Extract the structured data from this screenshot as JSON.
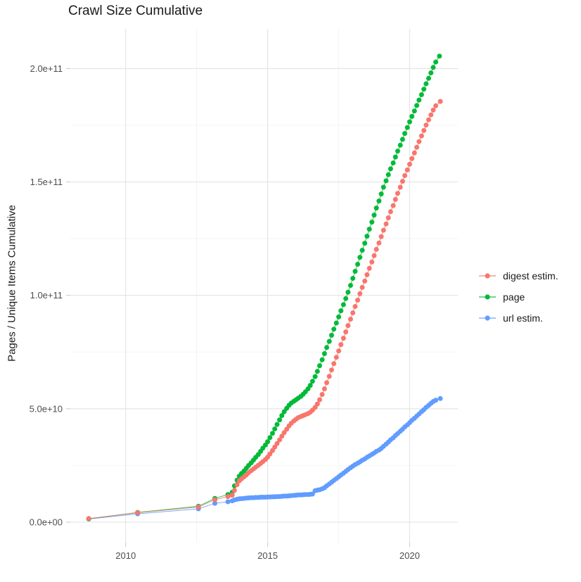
{
  "title": "Crawl Size Cumulative",
  "y_axis": {
    "label": "Pages / Unique Items Cumulative",
    "ticks": [
      {
        "label": "2.0e+11",
        "value": 200
      },
      {
        "label": "1.5e+11",
        "value": 150
      },
      {
        "label": "1.0e+11",
        "value": 100
      },
      {
        "label": "5.0e+10",
        "value": 50
      },
      {
        "label": "0.0e+00",
        "value": 0
      }
    ]
  },
  "x_axis": {
    "ticks": [
      {
        "label": "2010",
        "value": 2010
      },
      {
        "label": "2015",
        "value": 2015
      },
      {
        "label": "2020",
        "value": 2020
      }
    ]
  },
  "legend": {
    "items": [
      {
        "label": "digest estim.",
        "color": "#F8766D"
      },
      {
        "label": "page",
        "color": "#00BA38"
      },
      {
        "label": "url estim.",
        "color": "#619CFF"
      }
    ]
  },
  "colors": {
    "digest": "#F8766D",
    "page": "#00BA38",
    "url": "#619CFF",
    "grid_major": "#e3e3e3",
    "grid_minor": "#f0f0f0",
    "tick_text": "#4d4d4d",
    "title_text": "#1a1a1a",
    "background": "#ffffff"
  },
  "chart_data": {
    "type": "scatter",
    "title": "Crawl Size Cumulative",
    "xlabel": "",
    "ylabel": "Pages / Unique Items Cumulative",
    "values_unit": "billions (1e9) of pages / unique items, cumulative",
    "x_unit": "decimal year",
    "xlim": [
      2008.05,
      2021.7
    ],
    "ylim_billions": [
      -9,
      217.5
    ],
    "x_major_gridlines": [
      2010,
      2015,
      2020
    ],
    "x_minor_gridlines": [
      2012.5,
      2017.5
    ],
    "y_major_gridlines": [
      0,
      50,
      100,
      150,
      200
    ],
    "y_minor_gridlines": [
      25,
      75,
      125,
      175
    ],
    "grid": true,
    "legend_position": "right",
    "series": [
      {
        "name": "url estim.",
        "color": "#619CFF",
        "points": [
          [
            2008.7,
            1.4
          ],
          [
            2010.42,
            3.7
          ],
          [
            2012.56,
            5.9
          ],
          [
            2013.14,
            8.3
          ],
          [
            2013.6,
            9.0
          ],
          [
            2013.75,
            9.4
          ],
          [
            2013.83,
            9.8
          ],
          [
            2013.92,
            10.1
          ],
          [
            2014.0,
            10.3
          ],
          [
            2014.08,
            10.4
          ],
          [
            2014.17,
            10.5
          ],
          [
            2014.25,
            10.6
          ],
          [
            2014.33,
            10.7
          ],
          [
            2014.42,
            10.8
          ],
          [
            2014.5,
            10.8
          ],
          [
            2014.58,
            10.9
          ],
          [
            2014.67,
            10.9
          ],
          [
            2014.75,
            11.0
          ],
          [
            2014.83,
            11.0
          ],
          [
            2014.92,
            11.0
          ],
          [
            2015.0,
            11.1
          ],
          [
            2015.08,
            11.1
          ],
          [
            2015.17,
            11.2
          ],
          [
            2015.25,
            11.2
          ],
          [
            2015.33,
            11.3
          ],
          [
            2015.42,
            11.3
          ],
          [
            2015.5,
            11.4
          ],
          [
            2015.58,
            11.5
          ],
          [
            2015.67,
            11.5
          ],
          [
            2015.75,
            11.6
          ],
          [
            2015.83,
            11.7
          ],
          [
            2015.92,
            11.8
          ],
          [
            2016.0,
            11.9
          ],
          [
            2016.08,
            12.0
          ],
          [
            2016.17,
            12.0
          ],
          [
            2016.25,
            12.1
          ],
          [
            2016.33,
            12.2
          ],
          [
            2016.42,
            12.2
          ],
          [
            2016.5,
            12.3
          ],
          [
            2016.58,
            12.4
          ],
          [
            2016.67,
            13.9
          ],
          [
            2016.75,
            14.1
          ],
          [
            2016.83,
            14.3
          ],
          [
            2016.92,
            14.7
          ],
          [
            2017.0,
            15.2
          ],
          [
            2017.08,
            16.0
          ],
          [
            2017.17,
            16.8
          ],
          [
            2017.25,
            17.6
          ],
          [
            2017.33,
            18.4
          ],
          [
            2017.42,
            19.2
          ],
          [
            2017.5,
            20.0
          ],
          [
            2017.58,
            20.8
          ],
          [
            2017.67,
            21.6
          ],
          [
            2017.75,
            22.4
          ],
          [
            2017.83,
            23.2
          ],
          [
            2017.92,
            24.0
          ],
          [
            2018.0,
            24.7
          ],
          [
            2018.08,
            25.4
          ],
          [
            2018.17,
            26.0
          ],
          [
            2018.25,
            26.6
          ],
          [
            2018.33,
            27.3
          ],
          [
            2018.42,
            27.9
          ],
          [
            2018.5,
            28.6
          ],
          [
            2018.58,
            29.2
          ],
          [
            2018.67,
            29.9
          ],
          [
            2018.75,
            30.5
          ],
          [
            2018.83,
            31.2
          ],
          [
            2018.92,
            31.8
          ],
          [
            2019.0,
            32.5
          ],
          [
            2019.08,
            33.4
          ],
          [
            2019.17,
            34.4
          ],
          [
            2019.25,
            35.3
          ],
          [
            2019.33,
            36.3
          ],
          [
            2019.42,
            37.2
          ],
          [
            2019.5,
            38.2
          ],
          [
            2019.58,
            39.1
          ],
          [
            2019.67,
            40.1
          ],
          [
            2019.75,
            41.0
          ],
          [
            2019.83,
            42.0
          ],
          [
            2019.92,
            42.9
          ],
          [
            2020.0,
            43.9
          ],
          [
            2020.08,
            44.9
          ],
          [
            2020.17,
            45.8
          ],
          [
            2020.25,
            46.8
          ],
          [
            2020.33,
            47.7
          ],
          [
            2020.42,
            48.7
          ],
          [
            2020.5,
            49.6
          ],
          [
            2020.58,
            50.6
          ],
          [
            2020.67,
            51.5
          ],
          [
            2020.75,
            52.4
          ],
          [
            2020.83,
            53.2
          ],
          [
            2020.92,
            53.8
          ],
          [
            2021.08,
            54.5
          ]
        ]
      },
      {
        "name": "page",
        "color": "#00BA38",
        "points": [
          [
            2008.7,
            1.5
          ],
          [
            2010.42,
            4.3
          ],
          [
            2012.56,
            7.0
          ],
          [
            2013.14,
            10.5
          ],
          [
            2013.6,
            12.2
          ],
          [
            2013.75,
            13.2
          ],
          [
            2013.83,
            16.0
          ],
          [
            2013.92,
            18.5
          ],
          [
            2014.0,
            20.3
          ],
          [
            2014.08,
            21.5
          ],
          [
            2014.17,
            22.6
          ],
          [
            2014.25,
            23.8
          ],
          [
            2014.33,
            25.0
          ],
          [
            2014.42,
            26.2
          ],
          [
            2014.5,
            27.4
          ],
          [
            2014.58,
            28.6
          ],
          [
            2014.67,
            29.8
          ],
          [
            2014.75,
            31.2
          ],
          [
            2014.83,
            32.6
          ],
          [
            2014.92,
            34.0
          ],
          [
            2015.0,
            35.5
          ],
          [
            2015.08,
            37.3
          ],
          [
            2015.17,
            39.2
          ],
          [
            2015.25,
            41.1
          ],
          [
            2015.33,
            43.1
          ],
          [
            2015.42,
            45.1
          ],
          [
            2015.5,
            47.0
          ],
          [
            2015.58,
            48.7
          ],
          [
            2015.67,
            50.2
          ],
          [
            2015.75,
            51.5
          ],
          [
            2015.83,
            52.5
          ],
          [
            2015.92,
            53.3
          ],
          [
            2016.0,
            54.0
          ],
          [
            2016.08,
            54.7
          ],
          [
            2016.17,
            55.5
          ],
          [
            2016.25,
            56.4
          ],
          [
            2016.33,
            57.5
          ],
          [
            2016.42,
            58.8
          ],
          [
            2016.5,
            60.3
          ],
          [
            2016.58,
            62.1
          ],
          [
            2016.67,
            64.2
          ],
          [
            2016.75,
            66.5
          ],
          [
            2016.83,
            69.0
          ],
          [
            2016.92,
            71.6
          ],
          [
            2017.0,
            74.3
          ],
          [
            2017.08,
            77.0
          ],
          [
            2017.17,
            79.7
          ],
          [
            2017.25,
            82.4
          ],
          [
            2017.33,
            85.1
          ],
          [
            2017.42,
            87.8
          ],
          [
            2017.5,
            90.5
          ],
          [
            2017.58,
            93.2
          ],
          [
            2017.67,
            95.9
          ],
          [
            2017.75,
            98.6
          ],
          [
            2017.83,
            101.4
          ],
          [
            2017.92,
            104.4
          ],
          [
            2018.0,
            107.5
          ],
          [
            2018.08,
            110.6
          ],
          [
            2018.17,
            113.7
          ],
          [
            2018.25,
            116.8
          ],
          [
            2018.33,
            119.9
          ],
          [
            2018.42,
            123.0
          ],
          [
            2018.5,
            126.1
          ],
          [
            2018.58,
            129.2
          ],
          [
            2018.67,
            132.3
          ],
          [
            2018.75,
            135.4
          ],
          [
            2018.83,
            138.5
          ],
          [
            2018.92,
            141.6
          ],
          [
            2019.0,
            144.7
          ],
          [
            2019.08,
            147.7
          ],
          [
            2019.17,
            150.5
          ],
          [
            2019.25,
            153.2
          ],
          [
            2019.33,
            155.8
          ],
          [
            2019.42,
            158.4
          ],
          [
            2019.5,
            161.0
          ],
          [
            2019.58,
            163.6
          ],
          [
            2019.67,
            166.2
          ],
          [
            2019.75,
            168.8
          ],
          [
            2019.83,
            171.4
          ],
          [
            2019.92,
            174.0
          ],
          [
            2020.0,
            176.5
          ],
          [
            2020.08,
            178.9
          ],
          [
            2020.17,
            181.3
          ],
          [
            2020.25,
            183.7
          ],
          [
            2020.33,
            186.1
          ],
          [
            2020.42,
            188.5
          ],
          [
            2020.5,
            190.9
          ],
          [
            2020.58,
            193.3
          ],
          [
            2020.67,
            195.7
          ],
          [
            2020.75,
            198.1
          ],
          [
            2020.83,
            200.5
          ],
          [
            2020.92,
            202.9
          ],
          [
            2021.05,
            205.5
          ]
        ]
      },
      {
        "name": "digest estim.",
        "color": "#F8766D",
        "points": [
          [
            2008.7,
            1.6
          ],
          [
            2010.42,
            4.2
          ],
          [
            2012.56,
            6.7
          ],
          [
            2013.14,
            9.9
          ],
          [
            2013.6,
            11.3
          ],
          [
            2013.75,
            11.9
          ],
          [
            2013.83,
            14.0
          ],
          [
            2013.92,
            16.5
          ],
          [
            2014.0,
            18.2
          ],
          [
            2014.08,
            19.1
          ],
          [
            2014.17,
            20.0
          ],
          [
            2014.25,
            20.9
          ],
          [
            2014.33,
            21.8
          ],
          [
            2014.42,
            22.7
          ],
          [
            2014.5,
            23.5
          ],
          [
            2014.58,
            24.3
          ],
          [
            2014.67,
            25.1
          ],
          [
            2014.75,
            25.9
          ],
          [
            2014.83,
            26.7
          ],
          [
            2014.92,
            27.6
          ],
          [
            2015.0,
            28.7
          ],
          [
            2015.08,
            30.1
          ],
          [
            2015.17,
            31.6
          ],
          [
            2015.25,
            33.1
          ],
          [
            2015.33,
            34.7
          ],
          [
            2015.42,
            36.3
          ],
          [
            2015.5,
            37.9
          ],
          [
            2015.58,
            39.5
          ],
          [
            2015.67,
            41.0
          ],
          [
            2015.75,
            42.4
          ],
          [
            2015.83,
            43.6
          ],
          [
            2015.92,
            44.6
          ],
          [
            2016.0,
            45.4
          ],
          [
            2016.08,
            46.1
          ],
          [
            2016.17,
            46.6
          ],
          [
            2016.25,
            47.0
          ],
          [
            2016.33,
            47.4
          ],
          [
            2016.42,
            47.9
          ],
          [
            2016.5,
            48.5
          ],
          [
            2016.58,
            49.4
          ],
          [
            2016.67,
            50.6
          ],
          [
            2016.75,
            52.1
          ],
          [
            2016.83,
            54.0
          ],
          [
            2016.92,
            56.3
          ],
          [
            2017.0,
            58.8
          ],
          [
            2017.08,
            61.5
          ],
          [
            2017.17,
            64.3
          ],
          [
            2017.25,
            67.1
          ],
          [
            2017.33,
            69.9
          ],
          [
            2017.42,
            72.7
          ],
          [
            2017.5,
            75.5
          ],
          [
            2017.58,
            78.3
          ],
          [
            2017.67,
            81.1
          ],
          [
            2017.75,
            83.9
          ],
          [
            2017.83,
            86.7
          ],
          [
            2017.92,
            89.5
          ],
          [
            2018.0,
            92.3
          ],
          [
            2018.08,
            95.1
          ],
          [
            2018.17,
            97.9
          ],
          [
            2018.25,
            100.7
          ],
          [
            2018.33,
            103.5
          ],
          [
            2018.42,
            106.3
          ],
          [
            2018.5,
            109.1
          ],
          [
            2018.58,
            111.9
          ],
          [
            2018.67,
            114.7
          ],
          [
            2018.75,
            117.5
          ],
          [
            2018.83,
            120.3
          ],
          [
            2018.92,
            123.1
          ],
          [
            2019.0,
            125.9
          ],
          [
            2019.08,
            128.7
          ],
          [
            2019.17,
            131.5
          ],
          [
            2019.25,
            134.2
          ],
          [
            2019.33,
            136.9
          ],
          [
            2019.42,
            139.6
          ],
          [
            2019.5,
            142.3
          ],
          [
            2019.58,
            145.0
          ],
          [
            2019.67,
            147.7
          ],
          [
            2019.75,
            150.3
          ],
          [
            2019.83,
            152.8
          ],
          [
            2019.92,
            155.3
          ],
          [
            2020.0,
            157.8
          ],
          [
            2020.08,
            160.3
          ],
          [
            2020.17,
            162.8
          ],
          [
            2020.25,
            165.3
          ],
          [
            2020.33,
            167.8
          ],
          [
            2020.42,
            170.3
          ],
          [
            2020.5,
            172.7
          ],
          [
            2020.58,
            175.1
          ],
          [
            2020.67,
            177.4
          ],
          [
            2020.75,
            179.6
          ],
          [
            2020.83,
            181.7
          ],
          [
            2020.92,
            183.6
          ],
          [
            2021.08,
            185.5
          ]
        ]
      }
    ]
  }
}
